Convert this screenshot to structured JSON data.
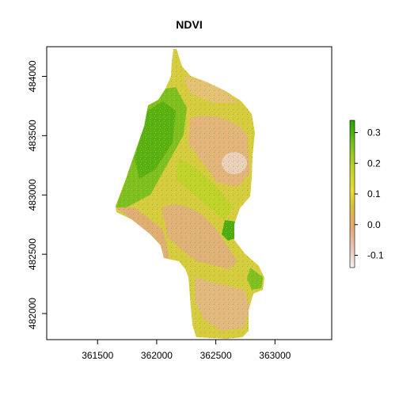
{
  "chart_data": {
    "type": "heatmap",
    "title": "NDVI",
    "xlabel": "",
    "ylabel": "",
    "x_ticks": [
      361500,
      362000,
      362500,
      363000
    ],
    "y_ticks": [
      482000,
      482500,
      483000,
      483500,
      484000
    ],
    "xlim": [
      361070,
      363480
    ],
    "ylim": [
      481780,
      484250
    ],
    "grid": false,
    "legend": {
      "placement": "right",
      "ticks": [
        -0.1,
        0.0,
        0.1,
        0.2,
        0.3
      ],
      "range": [
        -0.14,
        0.34
      ],
      "colors": [
        "#f2f2f2",
        "#eac7b8",
        "#e6a774",
        "#dcbf3c",
        "#e8e02e",
        "#bfd32a",
        "#78c11d",
        "#24a104"
      ]
    },
    "notes": {
      "value_range": "NDVI values range approximately -0.14 to 0.34 across the field boundary"
    }
  }
}
